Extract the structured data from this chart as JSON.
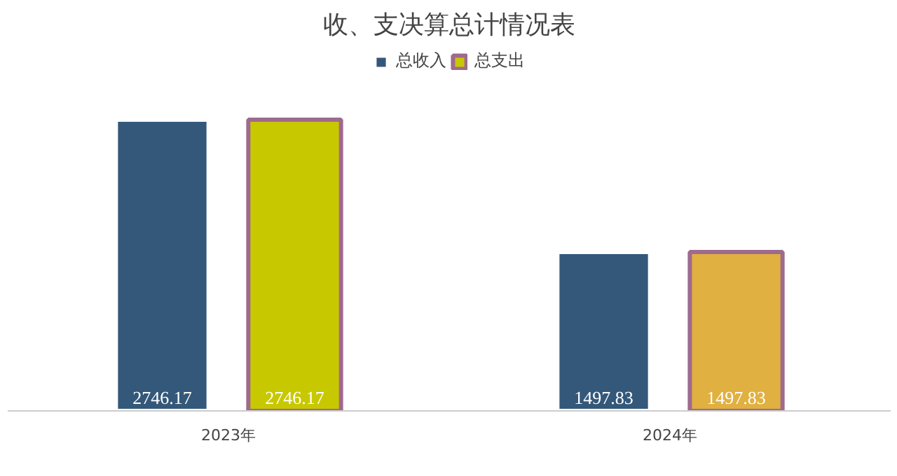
{
  "chart_data": {
    "type": "bar",
    "title": "收、支决算总计情况表",
    "categories": [
      "2023年",
      "2024年"
    ],
    "series": [
      {
        "name": "总收入",
        "color": "#34587a",
        "values": [
          2746.17,
          1497.83
        ]
      },
      {
        "name": "总支出",
        "color": "#9e6a8e",
        "colors": [
          "#c8c800",
          "#e0b040"
        ],
        "values": [
          2746.17,
          1497.83
        ]
      }
    ],
    "data_labels": true,
    "legend": "top",
    "grid": false
  }
}
